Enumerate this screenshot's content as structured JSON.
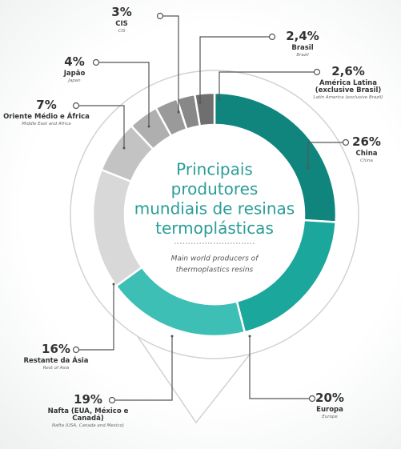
{
  "chart_data": {
    "type": "donut",
    "title": [
      "Principais",
      "produtores",
      "mundiais de resinas",
      "termoplásticas"
    ],
    "subtitle": [
      "Main world producers of",
      "thermoplastics resins"
    ],
    "categories": [
      "China",
      "Europa",
      "Nafta (EUA, México e Canadá)",
      "Restante da Ásia",
      "Oriente Médio e África",
      "Japão",
      "CIS",
      "Brasil",
      "América Latina (exclusive Brasil)"
    ],
    "categories_en": [
      "China",
      "Europe",
      "Nafta (USA, Canada and Mexico)",
      "Rest of Asia",
      "Middle East and Africa",
      "Japan",
      "CIS",
      "Brazil",
      "Latin America (exclusive Brazil)"
    ],
    "values": [
      26,
      20,
      19,
      16,
      7,
      4,
      3,
      2.4,
      2.6
    ],
    "value_labels": [
      "26%",
      "20%",
      "19%",
      "16%",
      "7%",
      "4%",
      "3%",
      "2,4%",
      "2,6%"
    ],
    "colors": [
      "#10857e",
      "#1ba79b",
      "#3dbfb5",
      "#d8d8d8",
      "#c3c3c3",
      "#afafaf",
      "#9a9a9a",
      "#888888",
      "#6f6f6f"
    ]
  }
}
